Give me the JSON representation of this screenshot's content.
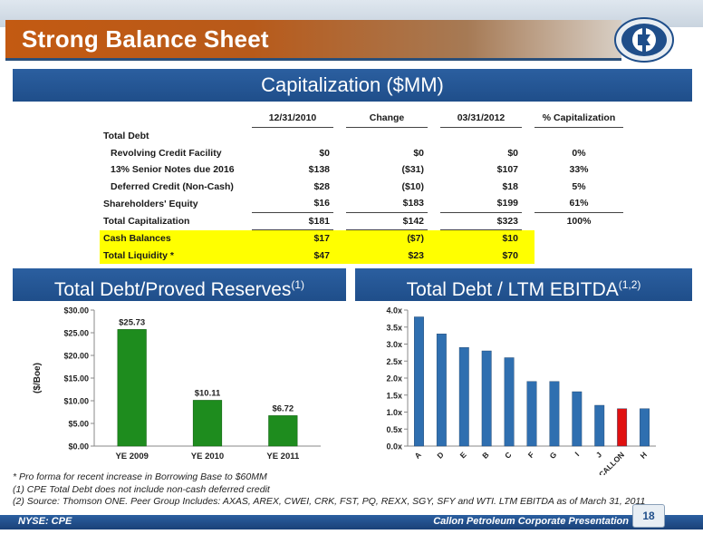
{
  "slide": {
    "title": "Strong Balance Sheet",
    "page_number": "18",
    "ticker": "NYSE: CPE",
    "presentation_name": "Callon Petroleum Corporate Presentation"
  },
  "capitalization": {
    "header": "Capitalization ($MM)",
    "columns": [
      "12/31/2010",
      "Change",
      "03/31/2012",
      "% Capitalization"
    ],
    "rows": [
      {
        "label": "Total Debt",
        "v1": "",
        "v2": "",
        "v3": "",
        "pct": ""
      },
      {
        "label": "Revolving Credit Facility",
        "v1": "$0",
        "v2": "$0",
        "v3": "$0",
        "pct": "0%"
      },
      {
        "label": "13% Senior Notes due 2016",
        "v1": "$138",
        "v2": "($31)",
        "v3": "$107",
        "pct": "33%"
      },
      {
        "label": "Deferred Credit (Non-Cash)",
        "v1": "$28",
        "v2": "($10)",
        "v3": "$18",
        "pct": "5%"
      },
      {
        "label": "Shareholders' Equity",
        "v1": "$16",
        "v2": "$183",
        "v3": "$199",
        "pct": "61%"
      },
      {
        "label": "Total Capitalization",
        "v1": "$181",
        "v2": "$142",
        "v3": "$323",
        "pct": "100%"
      },
      {
        "label": "Cash Balances",
        "v1": "$17",
        "v2": "($7)",
        "v3": "$10",
        "pct": ""
      },
      {
        "label": "Total Liquidity *",
        "v1": "$47",
        "v2": "$23",
        "v3": "$70",
        "pct": ""
      }
    ]
  },
  "debt_reserves_header": {
    "text": "Total Debt/Proved Reserves",
    "sup": "(1)"
  },
  "debt_ebitda_header": {
    "text": "Total Debt / LTM EBITDA",
    "sup": "(1,2)"
  },
  "footnotes": [
    "* Pro forma for recent increase in Borrowing Base to $60MM",
    "(1)  CPE Total Debt does not include non-cash deferred credit",
    "(2)  Source: Thomson ONE. Peer Group Includes: AXAS, AREX, CWEI, CRK, FST, PQ, REXX, SGY, SFY and WTI. LTM EBITDA as of March 31, 2011"
  ],
  "colors": {
    "accent_orange": "#c35a12",
    "header_blue": "#1f4e8a",
    "bar_green": "#1e8c1e",
    "bar_blue": "#2f6fb0",
    "highlight_red": "#e01010",
    "highlight_yellow": "#ffff00"
  },
  "chart_data": [
    {
      "type": "bar",
      "title": "Total Debt/Proved Reserves",
      "categories": [
        "YE 2009",
        "YE 2010",
        "YE 2011"
      ],
      "values": [
        25.73,
        10.11,
        6.72
      ],
      "data_labels": [
        "$25.73",
        "$10.11",
        "$6.72"
      ],
      "ylabel": "($/Boe)",
      "ylim": [
        0,
        30
      ],
      "yticks": [
        "$0.00",
        "$5.00",
        "$10.00",
        "$15.00",
        "$20.00",
        "$25.00",
        "$30.00"
      ],
      "grid": false
    },
    {
      "type": "bar",
      "title": "Total Debt / LTM EBITDA",
      "categories": [
        "A",
        "D",
        "E",
        "B",
        "C",
        "F",
        "G",
        "I",
        "J",
        "CALLON",
        "H"
      ],
      "values": [
        3.8,
        3.3,
        2.9,
        2.8,
        2.6,
        1.9,
        1.9,
        1.6,
        1.2,
        1.1,
        1.1
      ],
      "highlight": "CALLON",
      "ylim": [
        0,
        4
      ],
      "yticks": [
        "0.0x",
        "0.5x",
        "1.0x",
        "1.5x",
        "2.0x",
        "2.5x",
        "3.0x",
        "3.5x",
        "4.0x"
      ],
      "grid": false
    }
  ]
}
